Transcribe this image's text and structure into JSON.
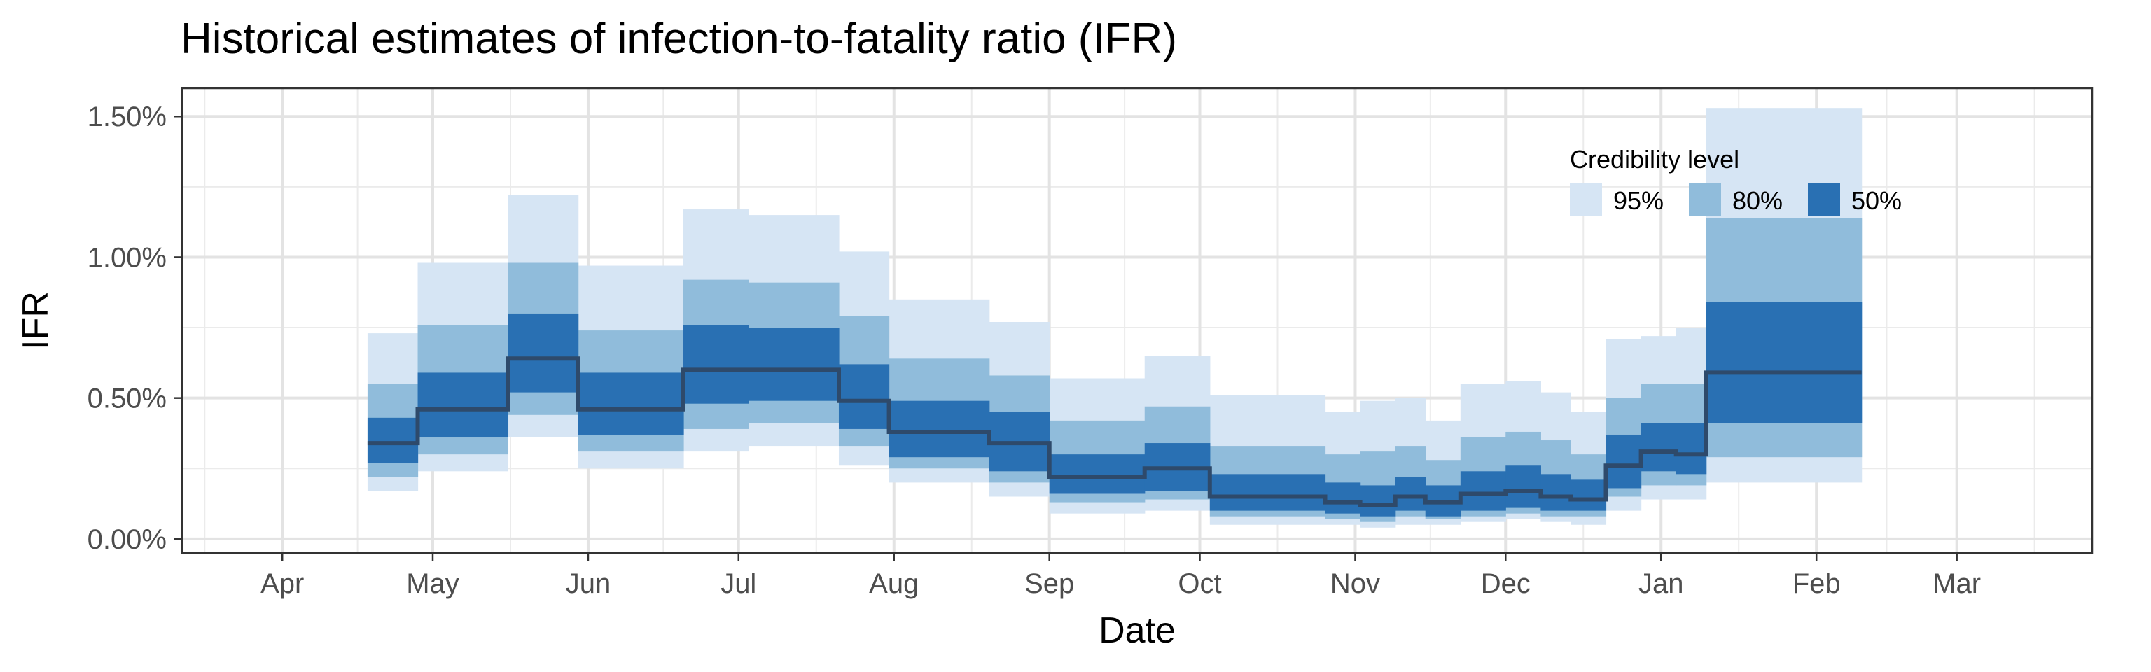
{
  "chart_data": {
    "type": "area",
    "title": "Historical estimates of infection-to-fatality ratio (IFR)",
    "xlabel": "Date",
    "ylabel": "IFR",
    "x_axis": {
      "type": "date",
      "ticks": [
        {
          "date": "2020-04-01",
          "label": "Apr"
        },
        {
          "date": "2020-05-01",
          "label": "May"
        },
        {
          "date": "2020-06-01",
          "label": "Jun"
        },
        {
          "date": "2020-07-01",
          "label": "Jul"
        },
        {
          "date": "2020-08-01",
          "label": "Aug"
        },
        {
          "date": "2020-09-01",
          "label": "Sep"
        },
        {
          "date": "2020-10-01",
          "label": "Oct"
        },
        {
          "date": "2020-11-01",
          "label": "Nov"
        },
        {
          "date": "2020-12-01",
          "label": "Dec"
        },
        {
          "date": "2021-01-01",
          "label": "Jan"
        },
        {
          "date": "2021-02-01",
          "label": "Feb"
        },
        {
          "date": "2021-03-01",
          "label": "Mar"
        }
      ],
      "range": [
        "2020-03-12",
        "2021-03-28"
      ]
    },
    "y_axis": {
      "range": [
        -0.05,
        1.6
      ],
      "unit": "percent",
      "ticks": [
        0,
        0.5,
        1.0,
        1.5
      ],
      "tick_labels": [
        "0.00%",
        "0.50%",
        "1.00%",
        "1.50%"
      ]
    },
    "grid": true,
    "legend": {
      "title": "Credibility level",
      "placement": "top-right inside",
      "entries": [
        {
          "label": "95%",
          "color": "#d6e5f4"
        },
        {
          "label": "80%",
          "color": "#90bcdb"
        },
        {
          "label": "50%",
          "color": "#2970b3"
        }
      ]
    },
    "median_color": "#2e4a6b",
    "series": [
      {
        "start": "2020-04-18",
        "end": "2020-04-28",
        "median": 0.34,
        "ci95": [
          0.17,
          0.73
        ],
        "ci80": [
          0.22,
          0.55
        ],
        "ci50": [
          0.27,
          0.43
        ]
      },
      {
        "start": "2020-04-28",
        "end": "2020-05-16",
        "median": 0.46,
        "ci95": [
          0.24,
          0.98
        ],
        "ci80": [
          0.3,
          0.76
        ],
        "ci50": [
          0.36,
          0.59
        ]
      },
      {
        "start": "2020-05-16",
        "end": "2020-05-30",
        "median": 0.64,
        "ci95": [
          0.36,
          1.22
        ],
        "ci80": [
          0.44,
          0.98
        ],
        "ci50": [
          0.52,
          0.8
        ]
      },
      {
        "start": "2020-05-30",
        "end": "2020-06-20",
        "median": 0.46,
        "ci95": [
          0.25,
          0.97
        ],
        "ci80": [
          0.31,
          0.74
        ],
        "ci50": [
          0.37,
          0.59
        ]
      },
      {
        "start": "2020-06-20",
        "end": "2020-07-03",
        "median": 0.6,
        "ci95": [
          0.31,
          1.17
        ],
        "ci80": [
          0.39,
          0.92
        ],
        "ci50": [
          0.48,
          0.76
        ]
      },
      {
        "start": "2020-07-03",
        "end": "2020-07-21",
        "median": 0.6,
        "ci95": [
          0.33,
          1.15
        ],
        "ci80": [
          0.41,
          0.91
        ],
        "ci50": [
          0.49,
          0.75
        ]
      },
      {
        "start": "2020-07-21",
        "end": "2020-07-31",
        "median": 0.49,
        "ci95": [
          0.26,
          1.02
        ],
        "ci80": [
          0.33,
          0.79
        ],
        "ci50": [
          0.39,
          0.62
        ]
      },
      {
        "start": "2020-07-31",
        "end": "2020-08-20",
        "median": 0.38,
        "ci95": [
          0.2,
          0.85
        ],
        "ci80": [
          0.25,
          0.64
        ],
        "ci50": [
          0.29,
          0.49
        ]
      },
      {
        "start": "2020-08-20",
        "end": "2020-09-01",
        "median": 0.34,
        "ci95": [
          0.15,
          0.77
        ],
        "ci80": [
          0.2,
          0.58
        ],
        "ci50": [
          0.24,
          0.45
        ]
      },
      {
        "start": "2020-09-01",
        "end": "2020-09-20",
        "median": 0.22,
        "ci95": [
          0.09,
          0.57
        ],
        "ci80": [
          0.13,
          0.42
        ],
        "ci50": [
          0.16,
          0.3
        ]
      },
      {
        "start": "2020-09-20",
        "end": "2020-10-03",
        "median": 0.25,
        "ci95": [
          0.1,
          0.65
        ],
        "ci80": [
          0.14,
          0.47
        ],
        "ci50": [
          0.17,
          0.34
        ]
      },
      {
        "start": "2020-10-03",
        "end": "2020-10-26",
        "median": 0.15,
        "ci95": [
          0.05,
          0.51
        ],
        "ci80": [
          0.08,
          0.33
        ],
        "ci50": [
          0.1,
          0.23
        ]
      },
      {
        "start": "2020-10-26",
        "end": "2020-11-02",
        "median": 0.13,
        "ci95": [
          0.05,
          0.45
        ],
        "ci80": [
          0.07,
          0.3
        ],
        "ci50": [
          0.09,
          0.2
        ]
      },
      {
        "start": "2020-11-02",
        "end": "2020-11-09",
        "median": 0.12,
        "ci95": [
          0.04,
          0.49
        ],
        "ci80": [
          0.06,
          0.31
        ],
        "ci50": [
          0.08,
          0.19
        ]
      },
      {
        "start": "2020-11-09",
        "end": "2020-11-15",
        "median": 0.15,
        "ci95": [
          0.05,
          0.5
        ],
        "ci80": [
          0.08,
          0.33
        ],
        "ci50": [
          0.1,
          0.22
        ]
      },
      {
        "start": "2020-11-15",
        "end": "2020-11-22",
        "median": 0.13,
        "ci95": [
          0.05,
          0.42
        ],
        "ci80": [
          0.07,
          0.28
        ],
        "ci50": [
          0.08,
          0.19
        ]
      },
      {
        "start": "2020-11-22",
        "end": "2020-12-01",
        "median": 0.16,
        "ci95": [
          0.06,
          0.55
        ],
        "ci80": [
          0.08,
          0.36
        ],
        "ci50": [
          0.1,
          0.24
        ]
      },
      {
        "start": "2020-12-01",
        "end": "2020-12-08",
        "median": 0.17,
        "ci95": [
          0.07,
          0.56
        ],
        "ci80": [
          0.09,
          0.38
        ],
        "ci50": [
          0.11,
          0.26
        ]
      },
      {
        "start": "2020-12-08",
        "end": "2020-12-14",
        "median": 0.15,
        "ci95": [
          0.06,
          0.52
        ],
        "ci80": [
          0.08,
          0.35
        ],
        "ci50": [
          0.1,
          0.23
        ]
      },
      {
        "start": "2020-12-14",
        "end": "2020-12-21",
        "median": 0.14,
        "ci95": [
          0.05,
          0.45
        ],
        "ci80": [
          0.08,
          0.3
        ],
        "ci50": [
          0.1,
          0.21
        ]
      },
      {
        "start": "2020-12-21",
        "end": "2020-12-28",
        "median": 0.26,
        "ci95": [
          0.1,
          0.71
        ],
        "ci80": [
          0.15,
          0.5
        ],
        "ci50": [
          0.18,
          0.37
        ]
      },
      {
        "start": "2020-12-28",
        "end": "2021-01-04",
        "median": 0.31,
        "ci95": [
          0.14,
          0.72
        ],
        "ci80": [
          0.19,
          0.55
        ],
        "ci50": [
          0.24,
          0.41
        ]
      },
      {
        "start": "2021-01-04",
        "end": "2021-01-10",
        "median": 0.3,
        "ci95": [
          0.14,
          0.75
        ],
        "ci80": [
          0.19,
          0.55
        ],
        "ci50": [
          0.23,
          0.41
        ]
      },
      {
        "start": "2021-01-10",
        "end": "2021-02-10",
        "median": 0.59,
        "ci95": [
          0.2,
          1.53
        ],
        "ci80": [
          0.29,
          1.14
        ],
        "ci50": [
          0.41,
          0.84
        ]
      }
    ]
  }
}
